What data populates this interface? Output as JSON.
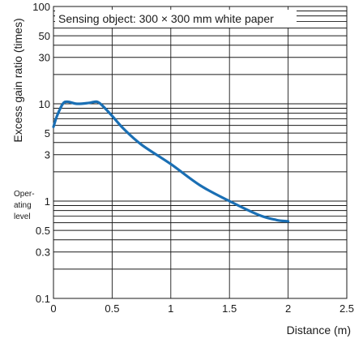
{
  "chart_data": {
    "type": "line",
    "annotation": "Sensing object: 300 × 300 mm white paper",
    "xlabel": "Distance (m)",
    "ylabel": "Excess gain ratio (times)",
    "x_scale": "linear",
    "y_scale": "log",
    "xlim": [
      0,
      2.5
    ],
    "ylim": [
      0.1,
      100
    ],
    "x_ticks": [
      "0",
      "0.5",
      "1",
      "1.5",
      "2",
      "2.5"
    ],
    "y_ticks": [
      "0.1",
      "0.3",
      "0.5",
      "1",
      "3",
      "5",
      "10",
      "30",
      "50",
      "100"
    ],
    "operating_level_label": [
      "Oper-",
      "ating",
      "level"
    ],
    "grid": "on",
    "line_color": "#1a6fb4",
    "series": [
      {
        "x": [
          0,
          0.03,
          0.08,
          0.12,
          0.2,
          0.3,
          0.37,
          0.42,
          0.5,
          0.6,
          0.75,
          1.0,
          1.25,
          1.5,
          1.75,
          1.9,
          2.0
        ],
        "y": [
          5.8,
          7.5,
          10.0,
          10.5,
          10.0,
          10.2,
          10.5,
          9.5,
          7.5,
          5.5,
          3.8,
          2.4,
          1.45,
          1.0,
          0.72,
          0.64,
          0.62
        ]
      }
    ]
  }
}
